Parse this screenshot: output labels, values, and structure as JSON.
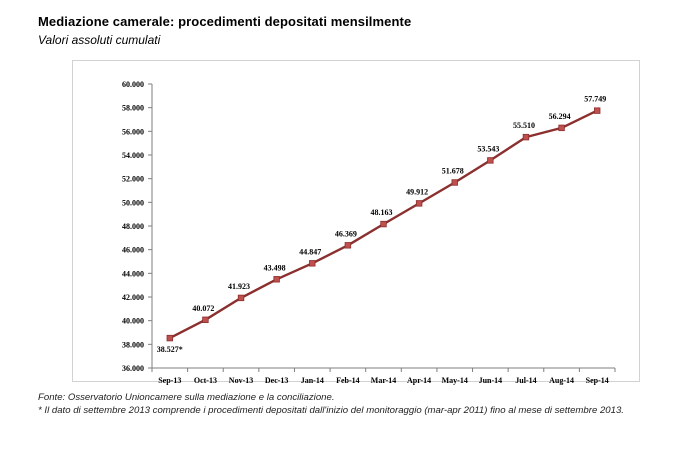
{
  "header": {
    "title": "Mediazione camerale: procedimenti depositati mensilmente",
    "subtitle": "Valori assoluti cumulati"
  },
  "notes": {
    "source": "Fonte: Osservatorio Unioncamere sulla mediazione e la conciliazione.",
    "footnote": "* Il dato di settembre 2013 comprende i procedimenti depositati dall'inizio del monitoraggio (mar-apr 2011) fino al mese di settembre 2013."
  },
  "colors": {
    "line": "#8b2f2f",
    "marker": "#c0504d",
    "axis": "#7f7f7f",
    "frame": "#d2d2d2"
  },
  "chart_data": {
    "type": "line",
    "title": "Mediazione camerale: procedimenti depositati mensilmente",
    "subtitle": "Valori assoluti cumulati",
    "xlabel": "",
    "ylabel": "",
    "categories": [
      "Sep-13",
      "Oct-13",
      "Nov-13",
      "Dec-13",
      "Jan-14",
      "Feb-14",
      "Mar-14",
      "Apr-14",
      "May-14",
      "Jun-14",
      "Jul-14",
      "Aug-14",
      "Sep-14"
    ],
    "values": [
      38527,
      40072,
      41923,
      43498,
      44847,
      46369,
      48163,
      49912,
      51678,
      53543,
      55510,
      56294,
      57749
    ],
    "data_labels": [
      "38.527*",
      "40.072",
      "41.923",
      "43.498",
      "44.847",
      "46.369",
      "48.163",
      "49.912",
      "51.678",
      "53.543",
      "55.510",
      "56.294",
      "57.749"
    ],
    "ylim": [
      36000,
      60000
    ],
    "y_ticks": [
      36000,
      38000,
      40000,
      42000,
      44000,
      46000,
      48000,
      50000,
      52000,
      54000,
      56000,
      58000,
      60000
    ],
    "y_tick_labels": [
      "36.000",
      "38.000",
      "40.000",
      "42.000",
      "44.000",
      "46.000",
      "48.000",
      "50.000",
      "52.000",
      "54.000",
      "56.000",
      "58.000",
      "60.000"
    ],
    "grid": false,
    "legend": "none",
    "marker": "square"
  }
}
